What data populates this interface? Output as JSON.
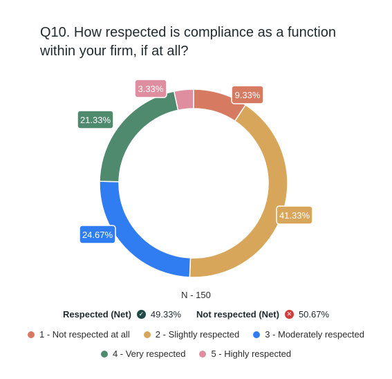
{
  "title": "Q10. How respected is compliance as a function within your firm, if at all?",
  "chart_data": {
    "type": "pie",
    "variant": "donut",
    "series": [
      {
        "name": "1 - Not respected at all",
        "value": 9.33,
        "label": "9.33%",
        "color": "#d77a62"
      },
      {
        "name": "2 - Slightly respected",
        "value": 41.33,
        "label": "41.33%",
        "color": "#d8a65a"
      },
      {
        "name": "3 - Moderately respected",
        "value": 24.67,
        "label": "24.67%",
        "color": "#2f7df0"
      },
      {
        "name": "4 - Very respected",
        "value": 21.33,
        "label": "21.33%",
        "color": "#4f8a6e"
      },
      {
        "name": "5 - Highly respected",
        "value": 3.33,
        "label": "3.33%",
        "color": "#df8ea0"
      }
    ],
    "legend_placement": "bottom"
  },
  "n_label": "N - 150",
  "net": {
    "respected_label": "Respected (Net)",
    "respected_value": "49.33%",
    "not_respected_label": "Not respected (Net)",
    "not_respected_value": "50.67%"
  }
}
